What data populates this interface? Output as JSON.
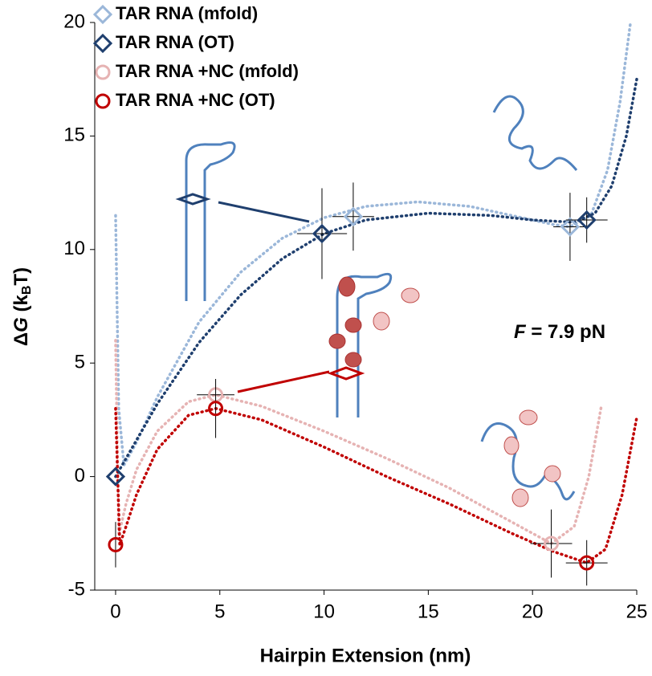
{
  "chart_data": {
    "type": "scatter",
    "xlabel": "Hairpin Extension (nm)",
    "ylabel_parts": [
      "Δ",
      "G",
      " (k",
      "B",
      "T)"
    ],
    "annotation_symbol": "F",
    "annotation": " = 7.9 pN",
    "xlim": [
      -1,
      25
    ],
    "xticks": [
      0,
      5,
      10,
      15,
      20,
      25
    ],
    "ylim": [
      -5,
      20
    ],
    "yticks": [
      -5,
      0,
      5,
      10,
      15,
      20
    ],
    "series": [
      {
        "name": "TAR RNA (mfold)",
        "color": "#9bb7d9",
        "marker": "diamond",
        "x": [
          11.4,
          21.8
        ],
        "values": [
          11.45,
          11.0
        ],
        "xerr": [
          1,
          0.8
        ],
        "yerr": [
          1.5,
          1.5
        ]
      },
      {
        "name": "TAR RNA (OT)",
        "color": "#1f3f6e",
        "marker": "diamond",
        "x": [
          0,
          9.9,
          22.6
        ],
        "values": [
          0,
          10.7,
          11.3
        ],
        "xerr": [
          null,
          1.2,
          1
        ],
        "yerr": [
          null,
          2,
          1
        ]
      },
      {
        "name": "TAR RNA +NC (mfold)",
        "color": "#e6b3b3",
        "marker": "circle",
        "x": [
          4.8,
          20.9
        ],
        "values": [
          3.6,
          -2.95
        ],
        "xerr": [
          0.9,
          1
        ],
        "yerr": [
          null,
          1.5
        ]
      },
      {
        "name": "TAR RNA +NC (OT)",
        "color": "#c00000",
        "marker": "circle",
        "x": [
          0,
          4.8,
          22.6
        ],
        "values": [
          -3,
          3.0,
          -3.8
        ],
        "xerr": [
          null,
          null,
          1
        ],
        "yerr": [
          1,
          1.3,
          1
        ]
      }
    ],
    "curves": [
      {
        "color": "#9bb7d9",
        "x": [
          0,
          0.15,
          0.4,
          1,
          2,
          4,
          6,
          8,
          10,
          12,
          14.5,
          17,
          19,
          21,
          21.8,
          22.8,
          23.6,
          24.2,
          24.7
        ],
        "values": [
          11.5,
          3,
          0.5,
          1.5,
          3.5,
          6.8,
          9,
          10.5,
          11.4,
          11.9,
          12.1,
          11.9,
          11.5,
          11.1,
          11.0,
          11.5,
          13.5,
          16.5,
          20
        ]
      },
      {
        "color": "#1f3f6e",
        "x": [
          0,
          1,
          2,
          4,
          6,
          8,
          10,
          12,
          15,
          18,
          20,
          22,
          23,
          23.8,
          24.5,
          25
        ],
        "values": [
          0,
          1.6,
          3.2,
          5.9,
          8,
          9.6,
          10.7,
          11.3,
          11.6,
          11.5,
          11.3,
          11.2,
          11.6,
          12.8,
          15,
          17.5
        ]
      },
      {
        "color": "#e6b3b3",
        "x": [
          0,
          0.15,
          0.5,
          1,
          2,
          3.5,
          4.8,
          7,
          10,
          13,
          16,
          19,
          20.9,
          22,
          22.7,
          23.3
        ],
        "values": [
          6,
          -2.6,
          -1.2,
          0.3,
          2,
          3.3,
          3.6,
          3.1,
          2,
          0.8,
          -0.5,
          -2,
          -2.95,
          -2.2,
          0,
          3.1
        ]
      },
      {
        "color": "#c00000",
        "x": [
          0,
          0.2,
          0.5,
          1,
          2,
          3.5,
          4.8,
          7,
          10,
          13,
          16,
          19,
          21,
          22.6,
          23.5,
          24.3,
          25
        ],
        "values": [
          3,
          -3,
          -2.2,
          -0.8,
          1.2,
          2.7,
          3.0,
          2.5,
          1.3,
          0,
          -1.2,
          -2.5,
          -3.3,
          -3.8,
          -3.2,
          -0.8,
          2.6
        ]
      }
    ]
  }
}
